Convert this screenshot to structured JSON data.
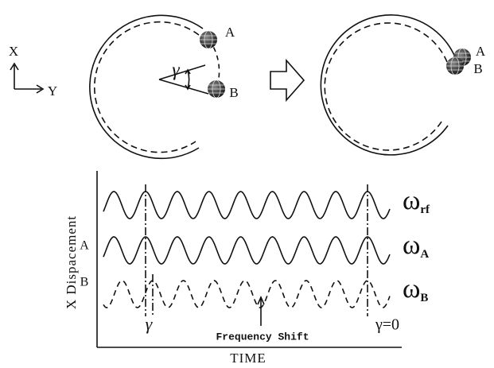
{
  "left_figure": {
    "axis_x": "X",
    "axis_y": "Y",
    "label_a": "A",
    "label_b": "B",
    "angle": "γ"
  },
  "right_figure": {
    "label_a": "A",
    "label_b": "B"
  },
  "plot": {
    "y_label": "X Dispacement",
    "x_label": "TIME",
    "waves": [
      {
        "symbol": "ω",
        "subscript": "rf"
      },
      {
        "label": "A",
        "symbol": "ω",
        "subscript": "A"
      },
      {
        "label": "B",
        "symbol": "ω",
        "subscript": "B"
      }
    ],
    "annotations": {
      "gamma": "γ",
      "shift": "Frequency Shift",
      "gamma_zero": "γ=0"
    }
  }
}
